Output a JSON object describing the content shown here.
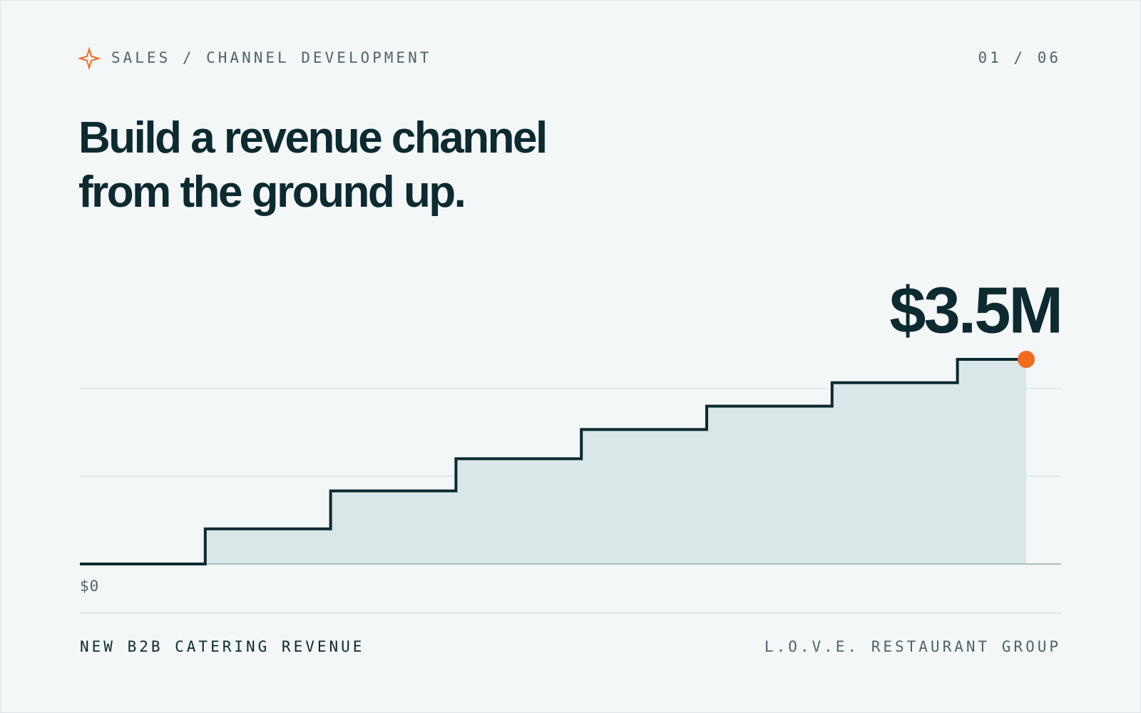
{
  "header": {
    "breadcrumb": "SALES / CHANNEL DEVELOPMENT",
    "page": "01 / 06"
  },
  "chart_data": {
    "type": "step",
    "title": "Build a revenue channel from the ground up.",
    "values": [
      0,
      0.6,
      1.25,
      1.8,
      2.3,
      2.7,
      3.1,
      3.5
    ],
    "value_labels": [
      null,
      null,
      null,
      null,
      null,
      null,
      null,
      "$3.5M"
    ],
    "ylim": [
      0,
      4
    ],
    "yticks": [
      {
        "value": 0,
        "label": "$0"
      },
      {
        "value": 1.5,
        "label": null
      },
      {
        "value": 3,
        "label": null
      }
    ],
    "grid": true,
    "color": "#0c2a30",
    "fill": "#d9e7e8",
    "marker_color": "#f26b21"
  },
  "footer": {
    "left": "NEW B2B CATERING REVENUE",
    "right": "L.O.V.E. RESTAURANT GROUP"
  }
}
